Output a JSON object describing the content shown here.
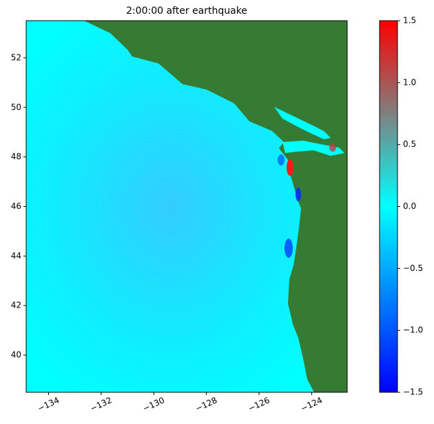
{
  "chart_data": {
    "type": "image",
    "title": "2:00:00 after earthquake",
    "xlim": [
      -134.85,
      -122.65
    ],
    "ylim": [
      38.5,
      53.5
    ],
    "xticks": [
      {
        "value": -134,
        "label": "−134"
      },
      {
        "value": -132,
        "label": "−132"
      },
      {
        "value": -130,
        "label": "−130"
      },
      {
        "value": -128,
        "label": "−128"
      },
      {
        "value": -126,
        "label": "−126"
      },
      {
        "value": -124,
        "label": "−124"
      }
    ],
    "yticks": [
      40,
      42,
      44,
      46,
      48,
      50,
      52
    ],
    "colorbar": {
      "clim": [
        -1.5,
        1.5
      ],
      "colormap": [
        "#0000ff",
        "#00ffff",
        "#ff0000"
      ],
      "ticks": [
        {
          "value": -1.5,
          "label": "−1.5"
        },
        {
          "value": -1.0,
          "label": "−1.0"
        },
        {
          "value": -0.5,
          "label": "−0.5"
        },
        {
          "value": 0,
          "label": "0.0"
        },
        0.5,
        {
          "value": 1.0,
          "label": "1.0"
        },
        1.5
      ]
    },
    "land_color": "#367b34"
  }
}
